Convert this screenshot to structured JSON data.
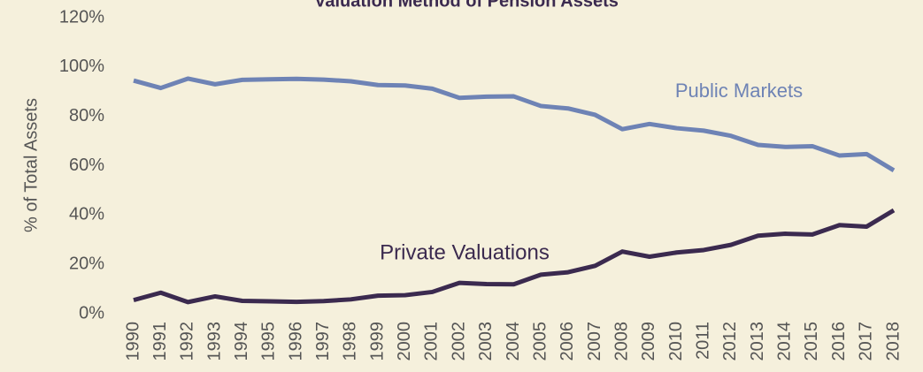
{
  "chart_data": {
    "type": "line",
    "title": "Valuation Method of Pension Assets",
    "ylabel": "% of Total Assets",
    "x": [
      "1990",
      "1991",
      "1992",
      "1993",
      "1994",
      "1995",
      "1996",
      "1997",
      "1998",
      "1999",
      "2000",
      "2001",
      "2002",
      "2003",
      "2004",
      "2005",
      "2006",
      "2007",
      "2008",
      "2009",
      "2010",
      "2011",
      "2012",
      "2013",
      "2014",
      "2015",
      "2016",
      "2017",
      "2018"
    ],
    "series": [
      {
        "name": "Public Markets",
        "color": "#6e83b5",
        "values": [
          94.5,
          91.5,
          95.3,
          93,
          94.8,
          95,
          95.2,
          94.9,
          94.2,
          92.7,
          92.5,
          91.2,
          87.5,
          88,
          88.1,
          84.2,
          83.2,
          80.6,
          74.8,
          76.9,
          75.2,
          74.2,
          72.1,
          68.4,
          67.6,
          67.9,
          64.1,
          64.7,
          58.1
        ]
      },
      {
        "name": "Private Valuations",
        "color": "#3b2a4f",
        "values": [
          5.5,
          8.5,
          4.7,
          7,
          5.2,
          5,
          4.8,
          5.1,
          5.8,
          7.3,
          7.5,
          8.8,
          12.5,
          12,
          11.9,
          15.8,
          16.8,
          19.4,
          25.2,
          23.1,
          24.8,
          25.8,
          27.9,
          31.6,
          32.4,
          32.1,
          35.9,
          35.3,
          41.9
        ]
      }
    ],
    "ylim": [
      0,
      120
    ],
    "yticks": [
      {
        "value": 0,
        "label": "0%"
      },
      {
        "value": 20,
        "label": "20%"
      },
      {
        "value": 40,
        "label": "40%"
      },
      {
        "value": 60,
        "label": "60%"
      },
      {
        "value": 80,
        "label": "80%"
      },
      {
        "value": 100,
        "label": "100%"
      },
      {
        "value": 120,
        "label": "120%"
      }
    ],
    "grid": false
  }
}
